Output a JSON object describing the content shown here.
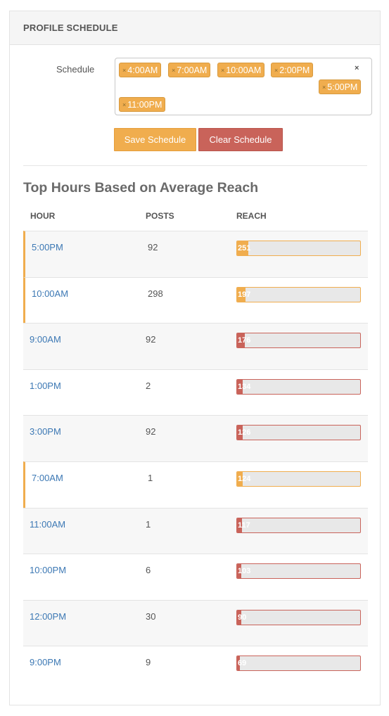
{
  "panel": {
    "title": "PROFILE SCHEDULE"
  },
  "schedule": {
    "label": "Schedule",
    "clear_all": "×",
    "tags": [
      {
        "label": "4:00AM",
        "remove": "×"
      },
      {
        "label": "7:00AM",
        "remove": "×"
      },
      {
        "label": "10:00AM",
        "remove": "×"
      },
      {
        "label": "2:00PM",
        "remove": "×"
      },
      {
        "label": "5:00PM",
        "remove": "×"
      },
      {
        "label": "11:00PM",
        "remove": "×"
      }
    ],
    "save_label": "Save Schedule",
    "clear_label": "Clear Schedule"
  },
  "top_hours": {
    "title": "Top Hours Based on Average Reach",
    "headers": {
      "hour": "HOUR",
      "posts": "POSTS",
      "reach": "REACH"
    },
    "max_reach": 251,
    "rows": [
      {
        "hour": "5:00PM",
        "posts": "92",
        "reach": "251",
        "reach_value": 251,
        "scheduled": true
      },
      {
        "hour": "10:00AM",
        "posts": "298",
        "reach": "197",
        "reach_value": 197,
        "scheduled": true
      },
      {
        "hour": "9:00AM",
        "posts": "92",
        "reach": "176",
        "reach_value": 176,
        "scheduled": false
      },
      {
        "hour": "1:00PM",
        "posts": "2",
        "reach": "134",
        "reach_value": 134,
        "scheduled": false
      },
      {
        "hour": "3:00PM",
        "posts": "92",
        "reach": "126",
        "reach_value": 126,
        "scheduled": false
      },
      {
        "hour": "7:00AM",
        "posts": "1",
        "reach": "124",
        "reach_value": 124,
        "scheduled": true
      },
      {
        "hour": "11:00AM",
        "posts": "1",
        "reach": "117",
        "reach_value": 117,
        "scheduled": false
      },
      {
        "hour": "10:00PM",
        "posts": "6",
        "reach": "103",
        "reach_value": 103,
        "scheduled": false
      },
      {
        "hour": "12:00PM",
        "posts": "30",
        "reach": "90",
        "reach_value": 90,
        "scheduled": false
      },
      {
        "hour": "9:00PM",
        "posts": "9",
        "reach": "69",
        "reach_value": 69,
        "scheduled": false
      }
    ]
  },
  "colors": {
    "accent_orange": "#f0ad4e",
    "accent_red": "#c9635a",
    "link_blue": "#3c78b4"
  }
}
